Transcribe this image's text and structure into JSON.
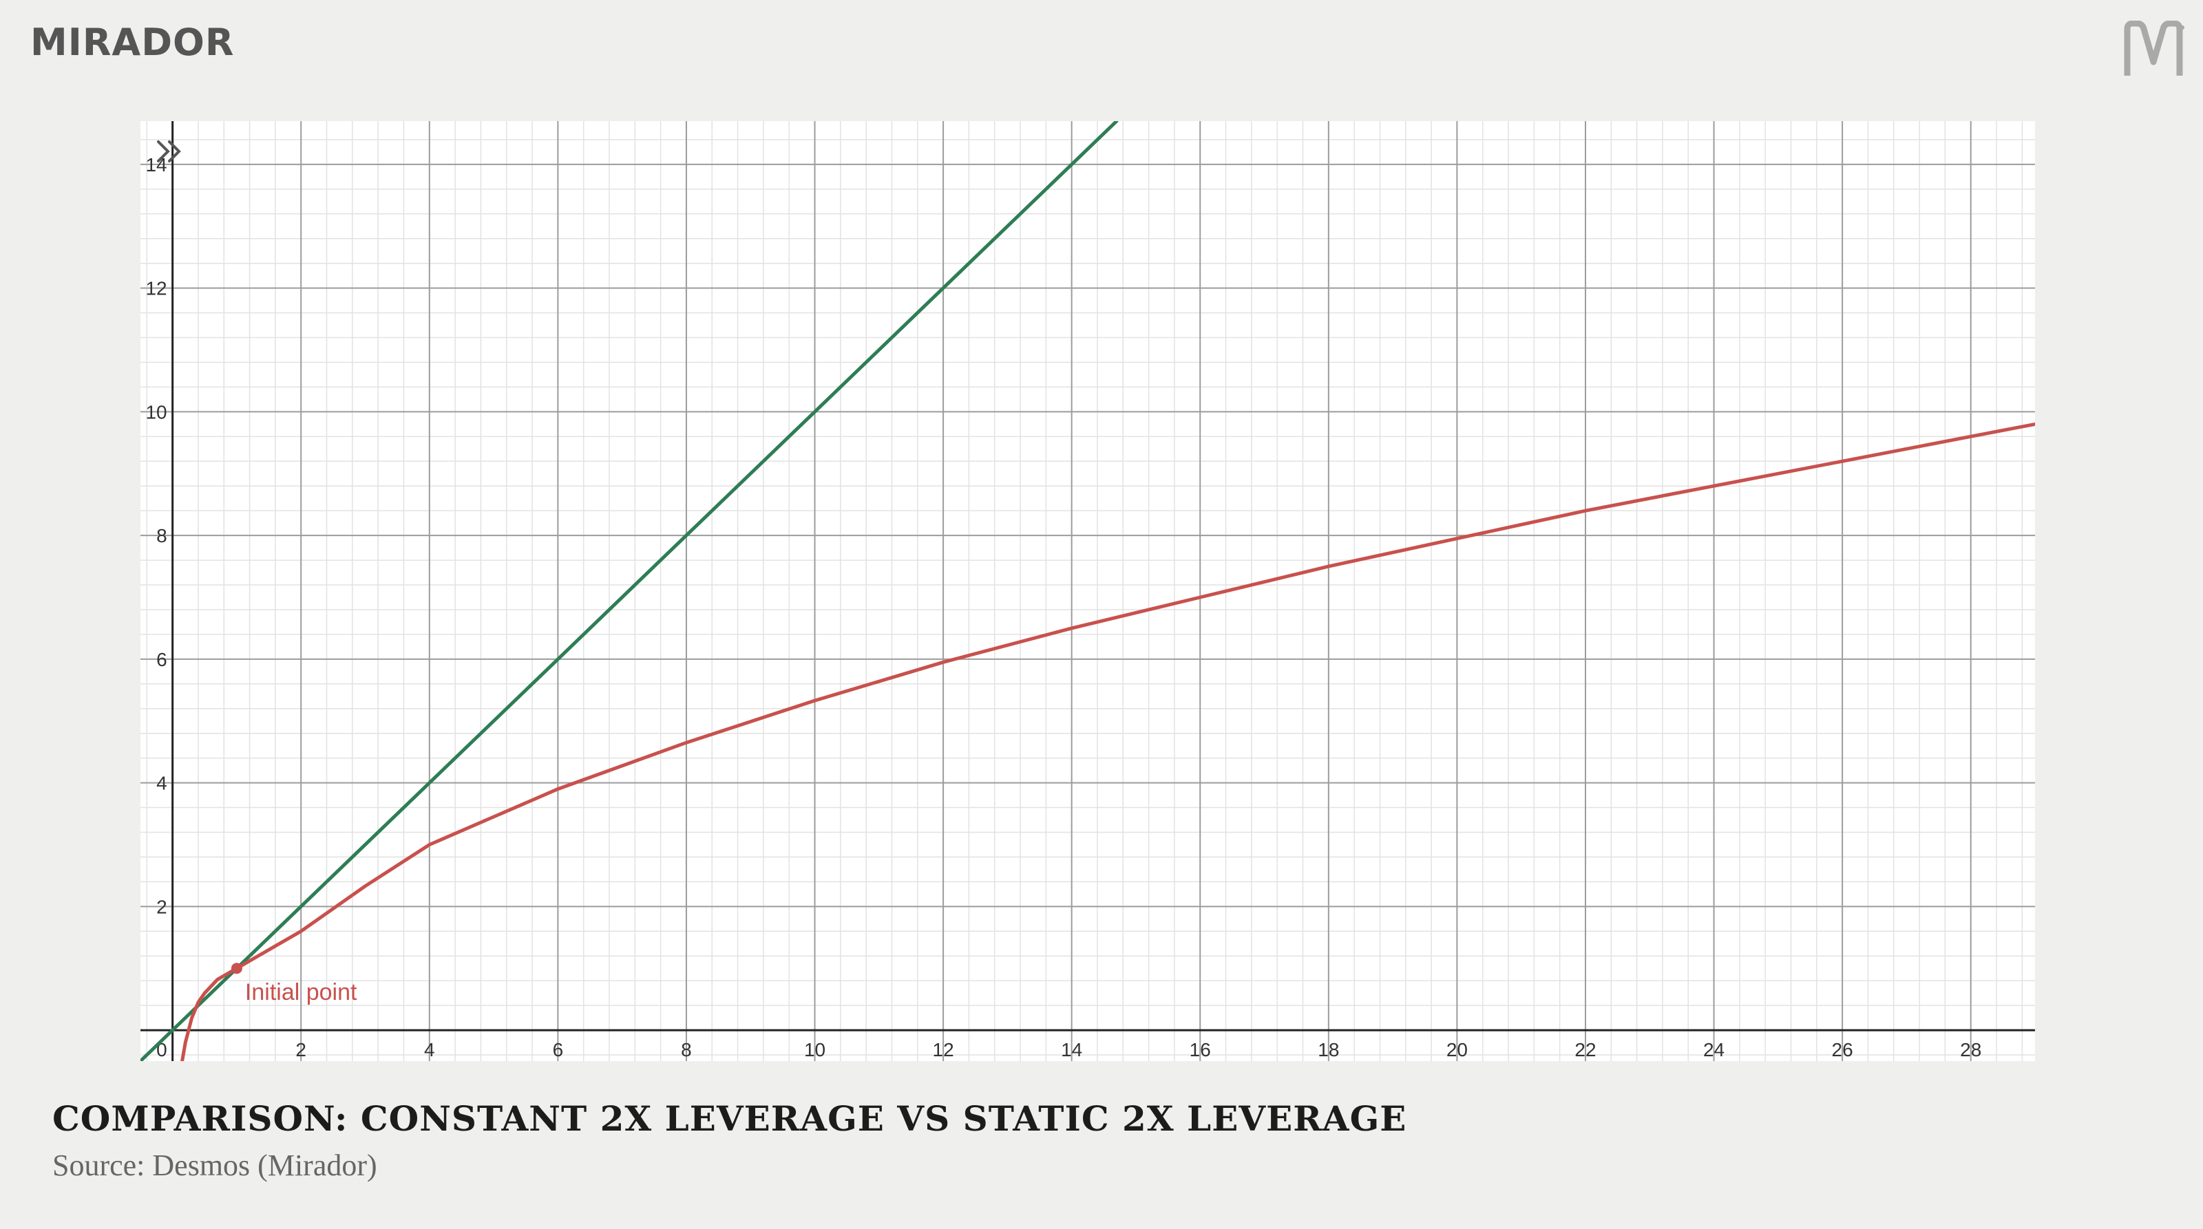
{
  "brand": {
    "name": "MIRADOR"
  },
  "icons": {
    "logo": "mirador-m-logo-icon",
    "collapse": "double-chevron-icon"
  },
  "caption": {
    "title": "COMPARISON: CONSTANT 2X LEVERAGE VS STATIC 2X LEVERAGE",
    "source": "Source: Desmos (Mirador)"
  },
  "colors": {
    "green": "#2e7d55",
    "red": "#c8514d",
    "grid_major": "#9c9c9c",
    "grid_minor": "#e2e2e2",
    "axis": "#222222"
  },
  "chart_data": {
    "type": "line",
    "xlim": [
      -0.5,
      29
    ],
    "ylim": [
      -0.5,
      14.7
    ],
    "grid": true,
    "x_ticks": [
      2,
      4,
      6,
      8,
      10,
      12,
      14,
      16,
      18,
      20,
      22,
      24,
      26,
      28
    ],
    "y_ticks": [
      2,
      4,
      6,
      8,
      10,
      12,
      14
    ],
    "origin_label": "0",
    "series": [
      {
        "color": "#2e7d55",
        "x": [
          -0.5,
          0,
          1,
          2,
          4,
          6,
          8,
          10,
          12,
          14,
          14.7
        ],
        "y": [
          -0.5,
          0,
          1,
          2,
          4,
          6,
          8,
          10,
          12,
          14,
          14.7
        ]
      },
      {
        "color": "#c8514d",
        "x": [
          0.15,
          0.2,
          0.3,
          0.4,
          0.5,
          0.7,
          1,
          1.5,
          2,
          3,
          4,
          5,
          6,
          8,
          10,
          12,
          14,
          16,
          18,
          20,
          22,
          24,
          26,
          28,
          29
        ],
        "y": [
          -0.5,
          -0.2,
          0.2,
          0.45,
          0.6,
          0.82,
          1,
          1.3,
          1.6,
          2.33,
          3.0,
          3.45,
          3.9,
          4.65,
          5.33,
          5.95,
          6.5,
          7.0,
          7.5,
          7.95,
          8.4,
          8.8,
          9.2,
          9.6,
          9.8
        ]
      }
    ],
    "annotations": [
      {
        "x": 1,
        "y": 1,
        "text": "Initial point",
        "color": "#c8514d"
      }
    ]
  }
}
